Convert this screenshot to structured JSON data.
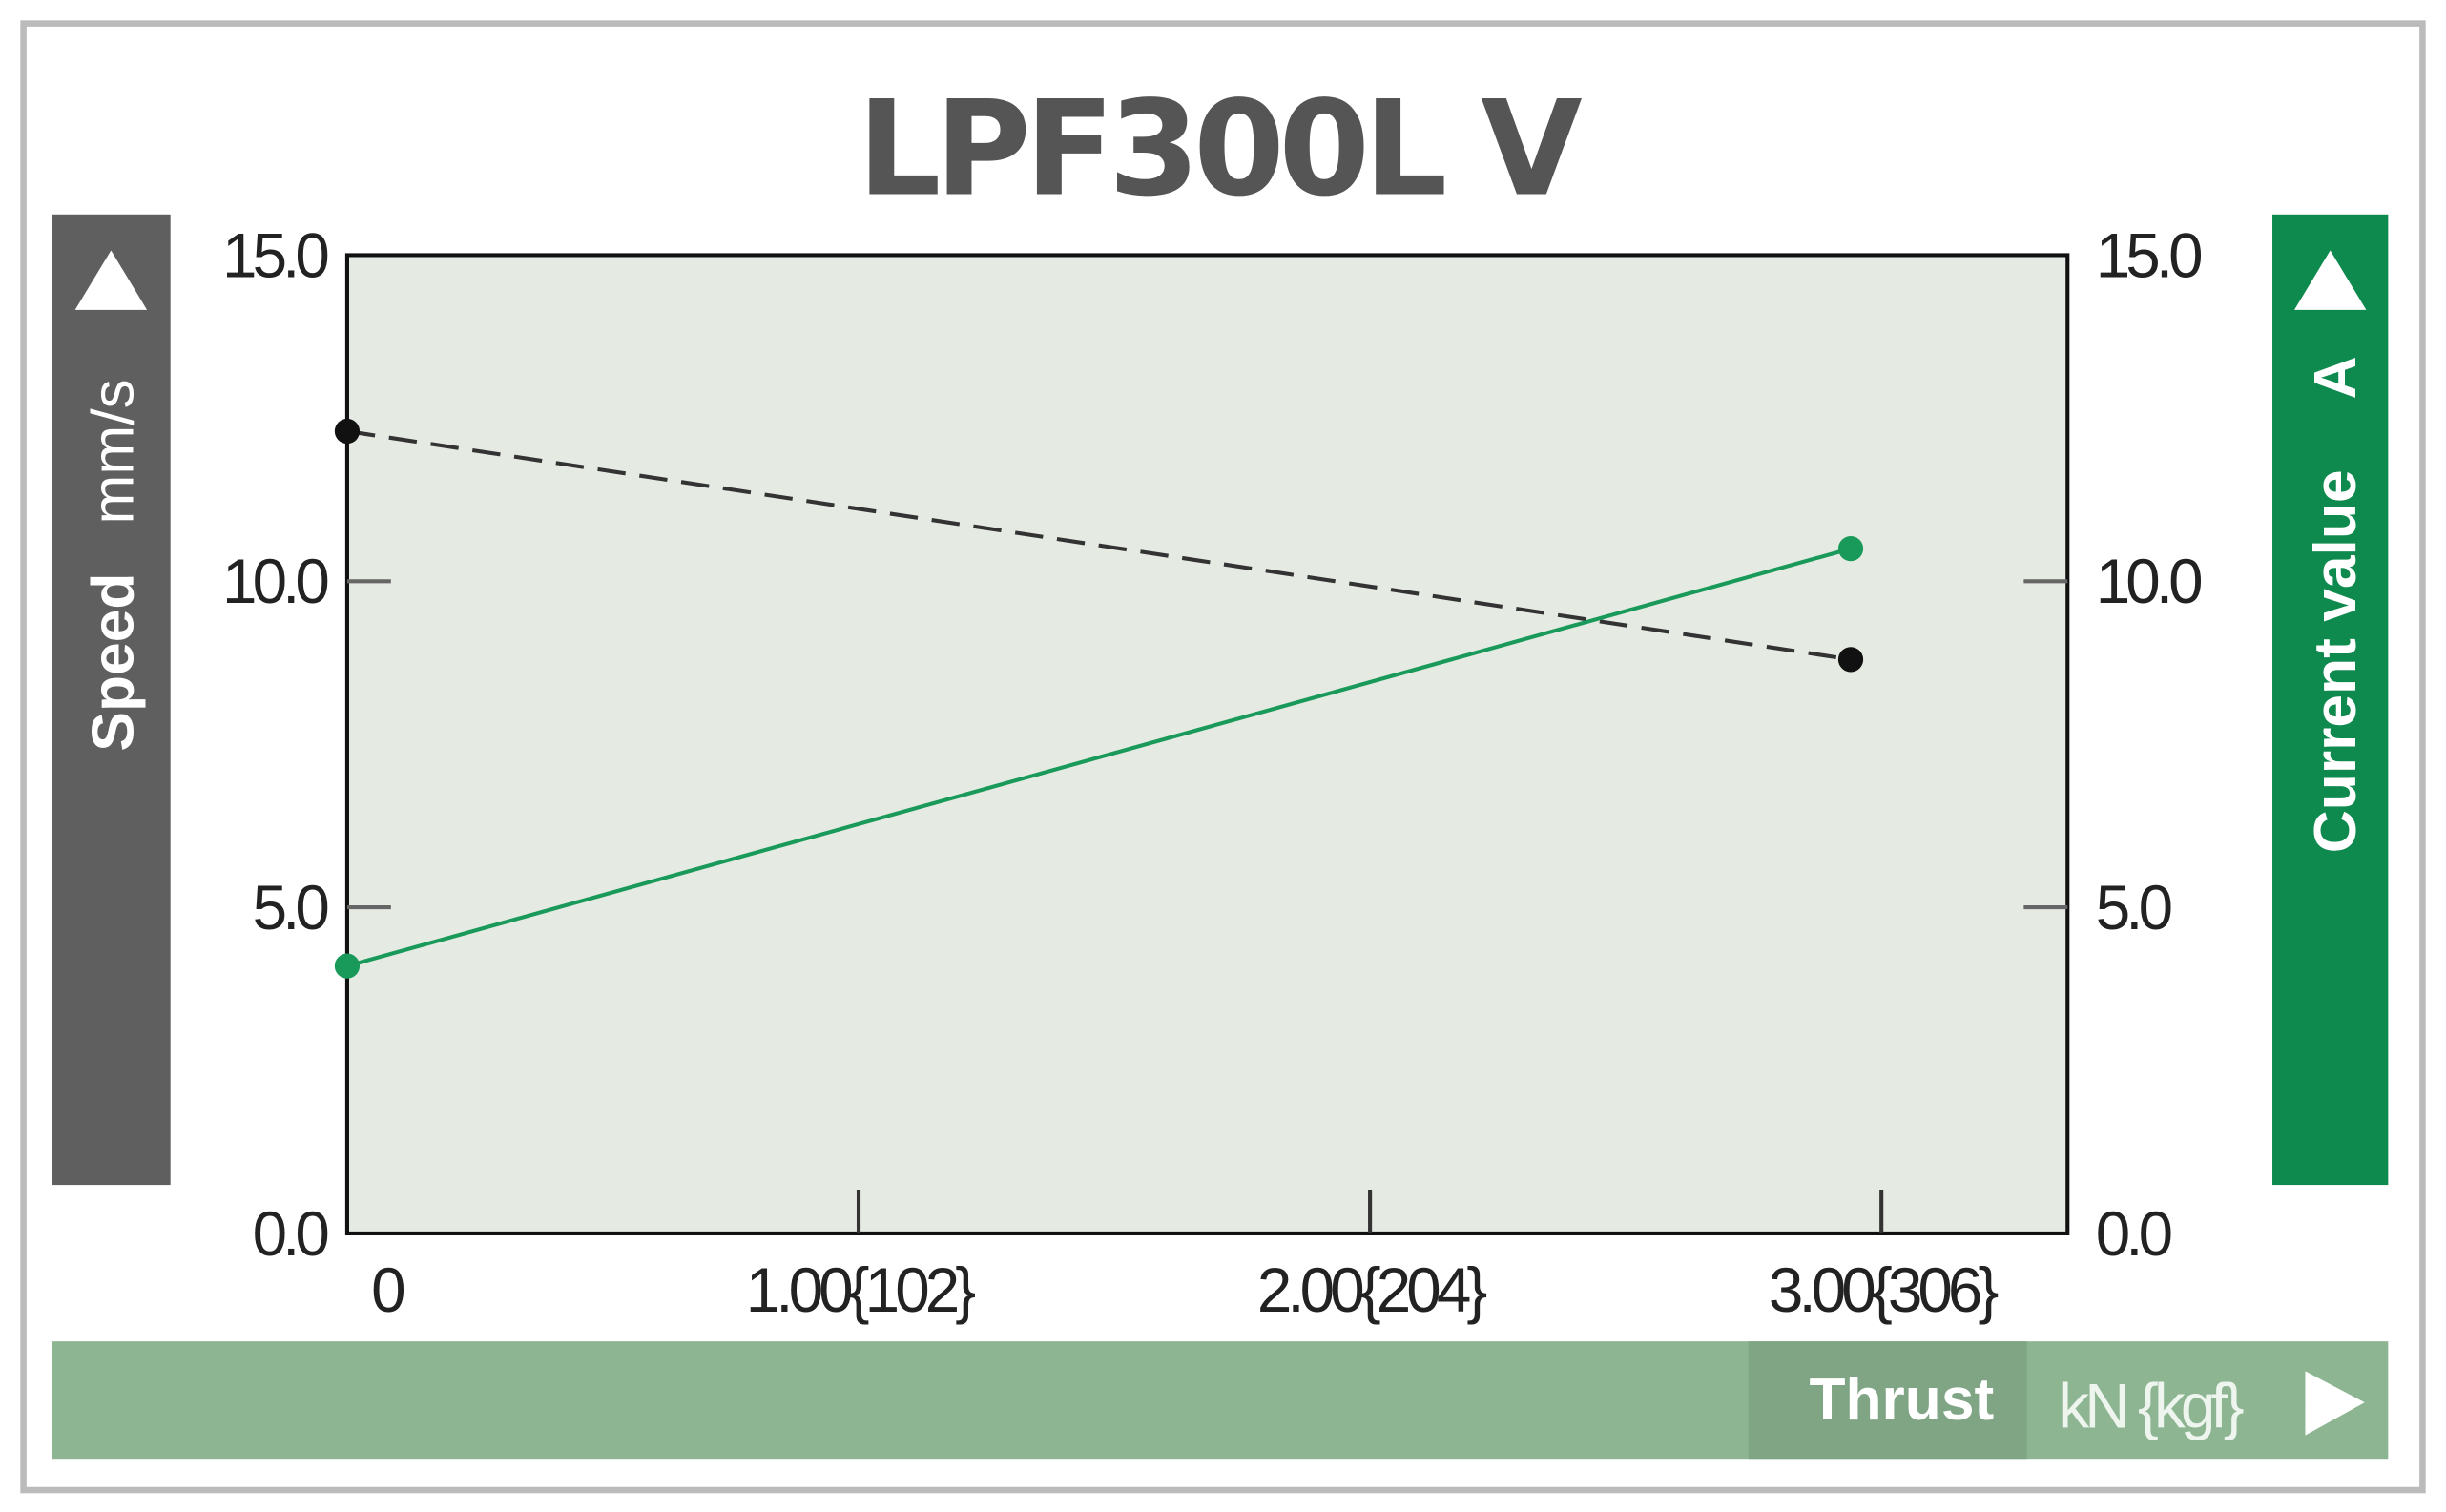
{
  "chart_data": {
    "type": "line",
    "title": "LPF300L V",
    "xlabel": "Thrust",
    "xunit": "kN {kgf}",
    "ylabel_left": "Speed",
    "yunit_left": "mm/s",
    "ylabel_right": "Current value",
    "yunit_right": "A",
    "xlim": [
      0,
      3.37
    ],
    "ylim": [
      0,
      15
    ],
    "y2lim": [
      0,
      15
    ],
    "x_ticks": [
      0,
      1,
      2,
      3
    ],
    "x_tick_labels": [
      "0",
      "1.00{102}",
      "2.00{204}",
      "3.00{306}"
    ],
    "y_ticks": [
      0,
      5,
      10,
      15
    ],
    "y_tick_labels": [
      "0.0",
      "5.0",
      "10.0",
      "15.0"
    ],
    "y2_tick_labels": [
      "0.0",
      "5.0",
      "10.0",
      "15.0"
    ],
    "grid": false,
    "series": [
      {
        "axis": "left",
        "style": "dashed",
        "color": "#333333",
        "x": [
          0,
          2.94
        ],
        "y": [
          12.3,
          8.8
        ]
      },
      {
        "axis": "right",
        "style": "solid",
        "color": "#1a9a5a",
        "x": [
          0,
          2.94
        ],
        "y": [
          4.1,
          10.5
        ]
      }
    ],
    "colors": {
      "plot_bg": "#e5ebe3",
      "left_band": "#5f5f5f",
      "right_band": "#0e8a4e",
      "bottom_band": "#8db592",
      "bottom_label_bg": "#80a585"
    }
  }
}
